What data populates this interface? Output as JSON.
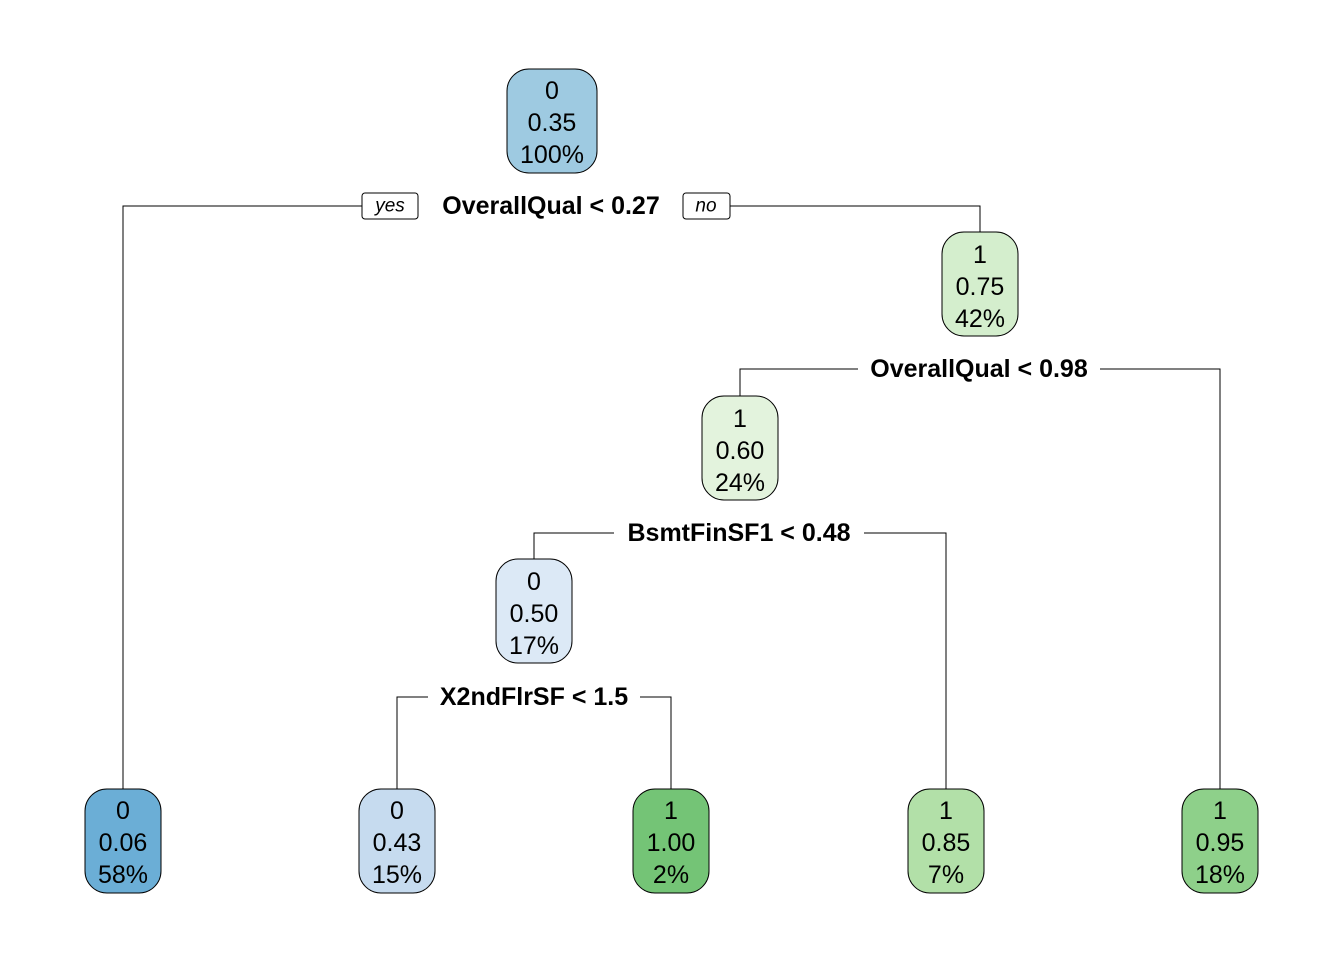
{
  "diagram": {
    "type": "decision-tree",
    "branch_labels": {
      "yes": "yes",
      "no": "no"
    },
    "nodes": [
      {
        "id": "n1",
        "class": "0",
        "prob": "0.35",
        "pct": "100%",
        "color": "#9ECAE1"
      },
      {
        "id": "n2",
        "class": "0",
        "prob": "0.06",
        "pct": "58%",
        "color": "#6BAED6"
      },
      {
        "id": "n3",
        "class": "1",
        "prob": "0.75",
        "pct": "42%",
        "color": "#D4EECD"
      },
      {
        "id": "n6",
        "class": "1",
        "prob": "0.60",
        "pct": "24%",
        "color": "#E3F3DD"
      },
      {
        "id": "n7",
        "class": "1",
        "prob": "0.95",
        "pct": "18%",
        "color": "#8ED08A"
      },
      {
        "id": "n12",
        "class": "0",
        "prob": "0.50",
        "pct": "17%",
        "color": "#DCE9F6"
      },
      {
        "id": "n13",
        "class": "1",
        "prob": "0.85",
        "pct": "7%",
        "color": "#B2E0A8"
      },
      {
        "id": "n24",
        "class": "0",
        "prob": "0.43",
        "pct": "15%",
        "color": "#C6DBEF"
      },
      {
        "id": "n25",
        "class": "1",
        "prob": "1.00",
        "pct": "2%",
        "color": "#74C476"
      }
    ],
    "splits": [
      {
        "id": "s1",
        "label": "OverallQual < 0.27"
      },
      {
        "id": "s3",
        "label": "OverallQual < 0.98"
      },
      {
        "id": "s6",
        "label": "BsmtFinSF1 < 0.48"
      },
      {
        "id": "s12",
        "label": "X2ndFlrSF < 1.5"
      }
    ]
  }
}
